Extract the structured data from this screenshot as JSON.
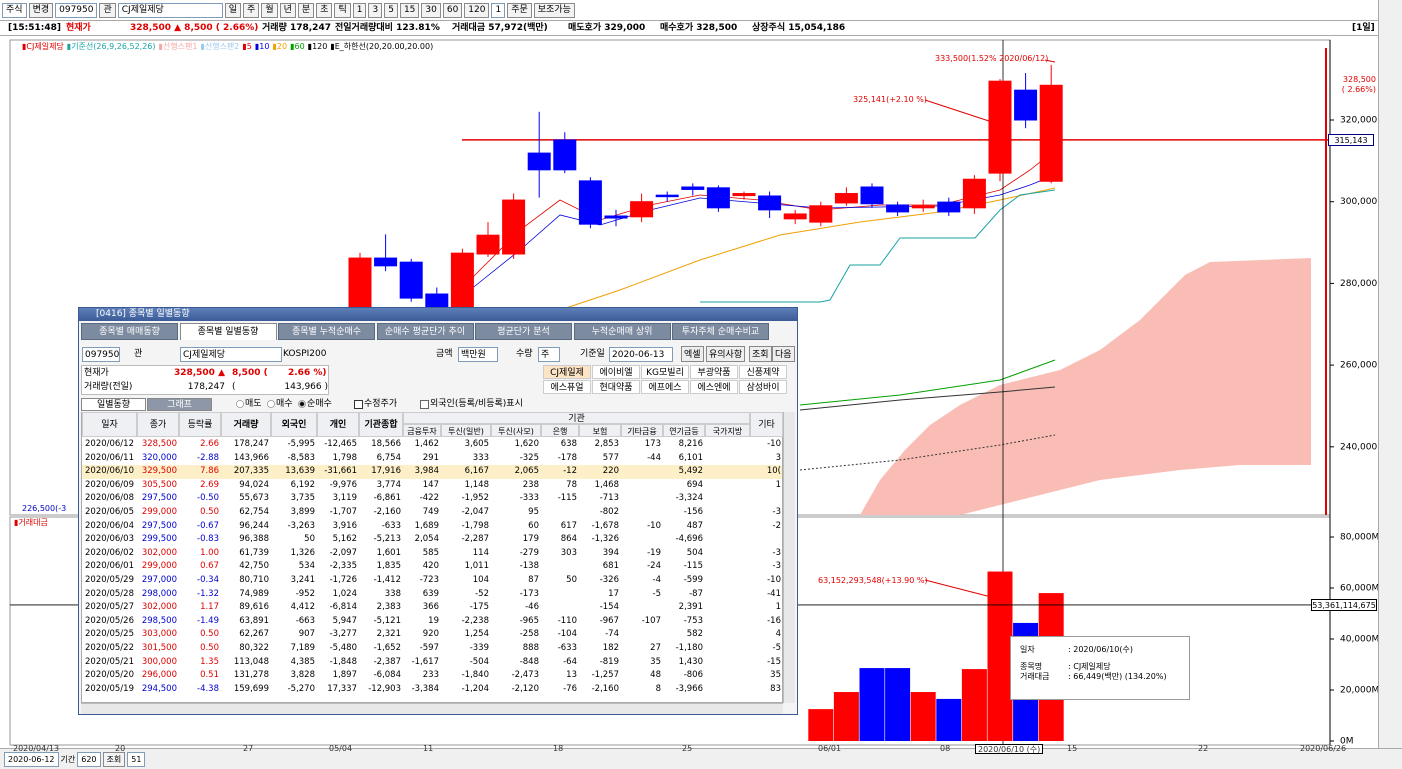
{
  "toolbar": {
    "market": "주식",
    "change": "변경",
    "code": "097950",
    "related": "관",
    "name": "CJ제일제당",
    "periods": [
      "일",
      "주",
      "월",
      "년",
      "분",
      "초",
      "틱"
    ],
    "intervals": [
      "1",
      "3",
      "5",
      "15",
      "30",
      "60",
      "120"
    ],
    "count": "1",
    "order": "주문",
    "aux": "보조가능"
  },
  "infobar": {
    "time": "[15:51:48]",
    "label": "현재가",
    "price": "328,500 ▲ 8,500 ( 2.66%)",
    "volume": "거래량 178,247",
    "vol_ratio": "전일거래량대비 123.81%",
    "amount": "거래대금 57,972(백만)",
    "ask": "매도호가 329,000",
    "bid": "매수호가 328,500",
    "shares": "상장주식 15,054,186",
    "period": "[1일]"
  },
  "price_chart": {
    "legend": [
      {
        "text": "▮CJ제일제당",
        "color": "#e00000"
      },
      {
        "text": "▮기준선(26,9,26,52,26)",
        "color": "#1aa3a3"
      },
      {
        "text": "▮선행스팬1",
        "color": "#f6a8a8"
      },
      {
        "text": "▮선행스팬2",
        "color": "#9cc8f0"
      },
      {
        "text": "▮5",
        "color": "#e00000"
      },
      {
        "text": "▮10",
        "color": "#0000e0"
      },
      {
        "text": "▮20",
        "color": "#f0a000"
      },
      {
        "text": "▮60",
        "color": "#00a000"
      },
      {
        "text": "▮120",
        "color": "#000000"
      },
      {
        "text": "▮E_하한선(20,20.00,20.00)",
        "color": "#000000"
      }
    ],
    "high_note": "333,500(1.52% 2020/06/12)",
    "avg_note": "325,141(+2.10 %)",
    "low_note": "226,500(-3",
    "last": {
      "value": 328500,
      "label": "328,500",
      "change": "( 2.66%)"
    },
    "ref_line": {
      "value": 315143,
      "label": "315,143"
    },
    "yticks": [
      {
        "value": 320000,
        "label": "320,000"
      },
      {
        "value": 300000,
        "label": "300,000"
      },
      {
        "value": 280000,
        "label": "280,000"
      },
      {
        "value": 260000,
        "label": "260,000"
      },
      {
        "value": 240000,
        "label": "240,000"
      }
    ],
    "open": [
      273500,
      286200,
      285200,
      277400,
      273500,
      287200,
      287200,
      311900,
      315100,
      305100,
      296500,
      296300,
      301600,
      303600,
      303400,
      301500,
      301400,
      295800,
      295000,
      299700,
      303600,
      299200,
      298500,
      299900,
      298500,
      307000,
      327300,
      305000
    ],
    "high": [
      287500,
      292000,
      286000,
      279000,
      288500,
      295000,
      302000,
      322000,
      317000,
      306000,
      298000,
      302000,
      302500,
      304500,
      304000,
      302500,
      302500,
      298000,
      300000,
      303500,
      304500,
      300000,
      300500,
      301000,
      306500,
      330000,
      331500,
      333500
    ],
    "low": [
      272500,
      283000,
      275500,
      272500,
      272000,
      286500,
      286000,
      301000,
      307000,
      293500,
      294000,
      295000,
      300000,
      301500,
      297500,
      300500,
      296000,
      294500,
      294000,
      299000,
      298500,
      296500,
      297500,
      296500,
      297000,
      305000,
      318000,
      304500
    ],
    "close": [
      286200,
      284300,
      276400,
      273500,
      287400,
      291800,
      300400,
      307800,
      307800,
      294500,
      296000,
      300000,
      301500,
      303000,
      298500,
      302000,
      298000,
      297000,
      299000,
      302000,
      299500,
      297500,
      299000,
      297500,
      305500,
      329500,
      320000,
      328500
    ]
  },
  "volume_chart": {
    "legend": "▮거래대금",
    "note": "63,152,293,548(+13.90 %)",
    "cursor": {
      "value": 53361.114675,
      "label": "53,361,114,675"
    },
    "yticks": [
      {
        "value": 80000,
        "label": "80,000M"
      },
      {
        "value": 60000,
        "label": "60,000M"
      },
      {
        "value": 40000,
        "label": "40,000M"
      },
      {
        "value": 20000,
        "label": "20,000M"
      },
      {
        "value": 0,
        "label": "0M"
      }
    ],
    "values": [
      12500,
      19200,
      28600,
      28600,
      19200,
      16500,
      28200,
      66449,
      46300,
      58000
    ]
  },
  "tooltip": [
    [
      "일자",
      ": 2020/06/10(수)"
    ],
    [
      "종목명",
      ": CJ제일제당"
    ],
    [
      "거래대금",
      ": 66,449(백만) (134.20%)"
    ]
  ],
  "x_axis": [
    "2020/04/13",
    "20",
    "27",
    "05/04",
    "11",
    "18",
    "25",
    "06/01",
    "08",
    "2020/06/10 (수)",
    "15",
    "22",
    "2020/06/26"
  ],
  "bottom_bar": {
    "date": "2020-06-12",
    "period_label": "기간",
    "period": "620",
    "query": "조회",
    "count": "51"
  },
  "popup": {
    "title": "[0416] 종목별 일별동향",
    "tabs": [
      "종목별 매매동향",
      "종목별 일별동향",
      "종목별 누적순매수",
      "순매수 평균단가 추이",
      "평균단가 분석",
      "누적순매매 상위",
      "투자주체 순매수비교"
    ],
    "controls": {
      "code": "097950",
      "related": "관",
      "name": "CJ제일제당",
      "index": "KOSPI200",
      "amount": "금액",
      "unit": "백만원",
      "qty": "수량",
      "qty_unit": "주",
      "date_label": "기준일",
      "date": "2020-06-13",
      "excel": "엑셀",
      "notice": "유의사항",
      "query": "조회",
      "next": "다음"
    },
    "info": {
      "price_label": "현재가",
      "price": "328,500 ▲",
      "change": "8,500 (",
      "rate": "2.66 %)",
      "vol_label": "거래량(전일)",
      "volume": "178,247",
      "paren": "(",
      "prev_volume": "143,966 )"
    },
    "peers": [
      "CJ제일제",
      "에이비엘",
      "KG모빌리",
      "부광약품",
      "신풍제약",
      "에스퓨얼",
      "현대약품",
      "에프에스",
      "에스엔에",
      "삼성바이"
    ],
    "subtabs": [
      "일별동향",
      "그래프"
    ],
    "radios": [
      "매도",
      "매수",
      "순매수"
    ],
    "adjusted": "수정주가",
    "foreign": "외국인(등록/비등록)표시",
    "group": "기관",
    "columns": [
      "일자",
      "종가",
      "등락률",
      "거래량",
      "외국인",
      "개인",
      "기관종합",
      "금융투자",
      "투신(일반)",
      "투신(사모)",
      "은행",
      "보험",
      "기타금융",
      "연기금등",
      "국가지방",
      "기타"
    ],
    "rows": [
      [
        "2020/06/12",
        "328,500",
        "2.66",
        "178,247",
        "-5,995",
        "-12,465",
        "18,566",
        "1,462",
        "3,605",
        "1,620",
        "638",
        "2,853",
        "173",
        "8,216",
        "",
        "-10"
      ],
      [
        "2020/06/11",
        "320,000",
        "-2.88",
        "143,966",
        "-8,583",
        "1,798",
        "6,754",
        "291",
        "333",
        "-325",
        "-178",
        "577",
        "-44",
        "6,101",
        "",
        "3"
      ],
      [
        "2020/06/10",
        "329,500",
        "7.86",
        "207,335",
        "13,639",
        "-31,661",
        "17,916",
        "3,984",
        "6,167",
        "2,065",
        "-12",
        "220",
        "",
        "5,492",
        "",
        "10("
      ],
      [
        "2020/06/09",
        "305,500",
        "2.69",
        "94,024",
        "6,192",
        "-9,976",
        "3,774",
        "147",
        "1,148",
        "238",
        "78",
        "1,468",
        "",
        "694",
        "",
        "1"
      ],
      [
        "2020/06/08",
        "297,500",
        "-0.50",
        "55,673",
        "3,735",
        "3,119",
        "-6,861",
        "-422",
        "-1,952",
        "-333",
        "-115",
        "-713",
        "",
        "-3,324",
        "",
        ""
      ],
      [
        "2020/06/05",
        "299,000",
        "0.50",
        "62,754",
        "3,899",
        "-1,707",
        "-2,160",
        "749",
        "-2,047",
        "95",
        "",
        "-802",
        "",
        "-156",
        "",
        "-3"
      ],
      [
        "2020/06/04",
        "297,500",
        "-0.67",
        "96,244",
        "-3,263",
        "3,916",
        "-633",
        "1,689",
        "-1,798",
        "60",
        "617",
        "-1,678",
        "-10",
        "487",
        "",
        "-2"
      ],
      [
        "2020/06/03",
        "299,500",
        "-0.83",
        "96,388",
        "50",
        "5,162",
        "-5,213",
        "2,054",
        "-2,287",
        "179",
        "864",
        "-1,326",
        "",
        "-4,696",
        "",
        ""
      ],
      [
        "2020/06/02",
        "302,000",
        "1.00",
        "61,739",
        "1,326",
        "-2,097",
        "1,601",
        "585",
        "114",
        "-279",
        "303",
        "394",
        "-19",
        "504",
        "",
        "-3"
      ],
      [
        "2020/06/01",
        "299,000",
        "0.67",
        "42,750",
        "534",
        "-2,335",
        "1,835",
        "420",
        "1,011",
        "-138",
        "",
        "681",
        "-24",
        "-115",
        "",
        "-3"
      ],
      [
        "2020/05/29",
        "297,000",
        "-0.34",
        "80,710",
        "3,241",
        "-1,726",
        "-1,412",
        "-723",
        "104",
        "87",
        "50",
        "-326",
        "-4",
        "-599",
        "",
        "-10"
      ],
      [
        "2020/05/28",
        "298,000",
        "-1.32",
        "74,989",
        "-952",
        "1,024",
        "338",
        "639",
        "-52",
        "-173",
        "",
        "17",
        "-5",
        "-87",
        "",
        "-41"
      ],
      [
        "2020/05/27",
        "302,000",
        "1.17",
        "89,616",
        "4,412",
        "-6,814",
        "2,383",
        "366",
        "-175",
        "-46",
        "",
        "-154",
        "",
        "2,391",
        "",
        "1"
      ],
      [
        "2020/05/26",
        "298,500",
        "-1.49",
        "63,891",
        "-663",
        "5,947",
        "-5,121",
        "19",
        "-2,238",
        "-965",
        "-110",
        "-967",
        "-107",
        "-753",
        "",
        "-16"
      ],
      [
        "2020/05/25",
        "303,000",
        "0.50",
        "62,267",
        "907",
        "-3,277",
        "2,321",
        "920",
        "1,254",
        "-258",
        "-104",
        "-74",
        "",
        "582",
        "",
        "4"
      ],
      [
        "2020/05/22",
        "301,500",
        "0.50",
        "80,322",
        "7,189",
        "-5,480",
        "-1,652",
        "-597",
        "-339",
        "888",
        "-633",
        "182",
        "27",
        "-1,180",
        "",
        "-5"
      ],
      [
        "2020/05/21",
        "300,000",
        "1.35",
        "113,048",
        "4,385",
        "-1,848",
        "-2,387",
        "-1,617",
        "-504",
        "-848",
        "-64",
        "-819",
        "35",
        "1,430",
        "",
        "-15"
      ],
      [
        "2020/05/20",
        "296,000",
        "0.51",
        "131,278",
        "3,828",
        "1,897",
        "-6,084",
        "233",
        "-1,840",
        "-2,473",
        "13",
        "-1,257",
        "48",
        "-806",
        "",
        "35"
      ],
      [
        "2020/05/19",
        "294,500",
        "-4.38",
        "159,699",
        "-5,270",
        "17,337",
        "-12,903",
        "-3,384",
        "-1,204",
        "-2,120",
        "-76",
        "-2,160",
        "8",
        "-3,966",
        "",
        "83"
      ]
    ]
  }
}
